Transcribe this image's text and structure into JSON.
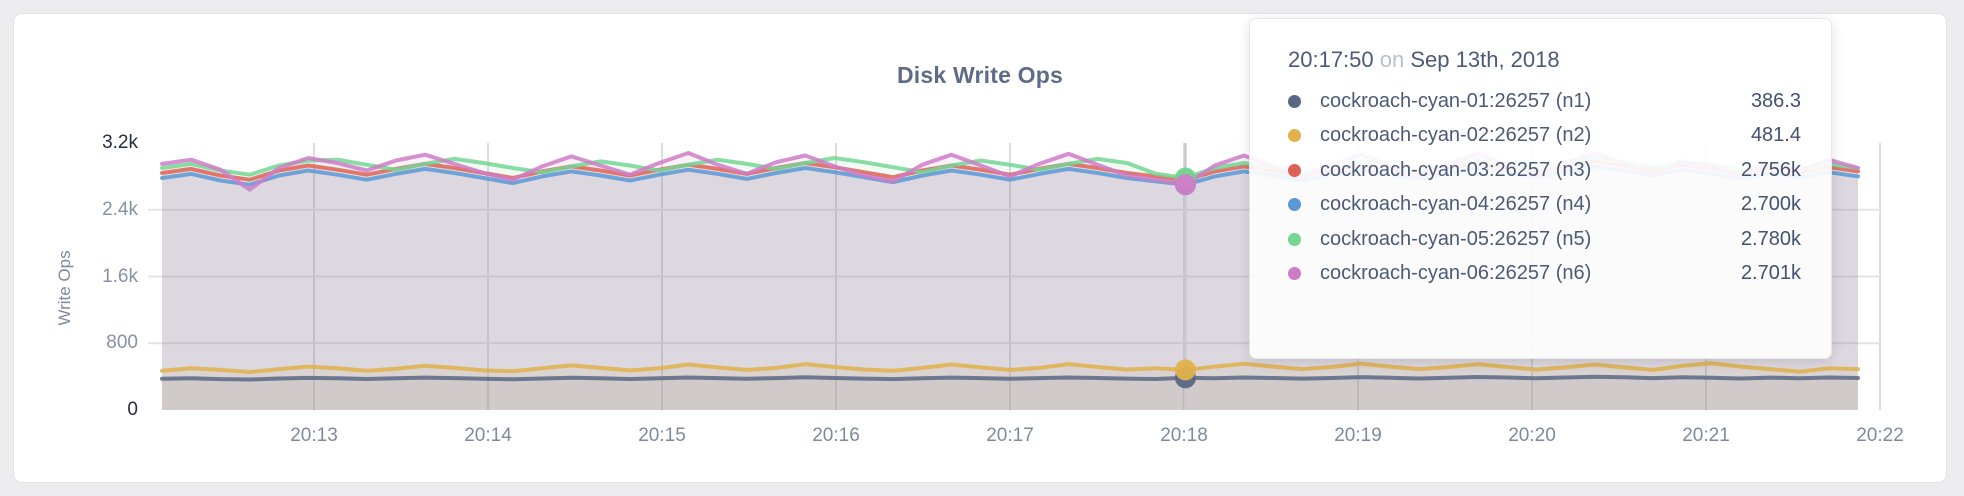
{
  "title": "Disk Write Ops",
  "tooltip": {
    "time": "20:17:50",
    "connector": "on",
    "date": "Sep 13th, 2018",
    "rows": [
      {
        "label": "cockroach-cyan-01:26257 (n1)",
        "value": "386.3",
        "color": "#5a6784"
      },
      {
        "label": "cockroach-cyan-02:26257 (n2)",
        "value": "481.4",
        "color": "#e0b24b"
      },
      {
        "label": "cockroach-cyan-03:26257 (n3)",
        "value": "2.756k",
        "color": "#de6156"
      },
      {
        "label": "cockroach-cyan-04:26257 (n4)",
        "value": "2.700k",
        "color": "#5a98d6"
      },
      {
        "label": "cockroach-cyan-05:26257 (n5)",
        "value": "2.780k",
        "color": "#73d694"
      },
      {
        "label": "cockroach-cyan-06:26257 (n6)",
        "value": "2.701k",
        "color": "#cf7cc7"
      }
    ]
  },
  "chart_data": {
    "type": "line",
    "title": "Disk Write Ops",
    "xlabel": "",
    "ylabel": "Write Ops",
    "ylim": [
      0,
      3200
    ],
    "grid": true,
    "area_fill": true,
    "legend_position": "tooltip-only",
    "y_ticks": [
      {
        "label": "0",
        "value": 0,
        "dark": true
      },
      {
        "label": "800",
        "value": 800,
        "dark": false
      },
      {
        "label": "1.6k",
        "value": 1600,
        "dark": false
      },
      {
        "label": "2.4k",
        "value": 2400,
        "dark": false
      },
      {
        "label": "3.2k",
        "value": 3200,
        "dark": true
      }
    ],
    "x_ticks": [
      "20:13",
      "20:14",
      "20:15",
      "20:16",
      "20:17",
      "20:18",
      "20:19",
      "20:20",
      "20:21",
      "20:22"
    ],
    "hover": {
      "index": 35,
      "time": "20:17:50",
      "date": "Sep 13th, 2018"
    },
    "series": [
      {
        "name": "cockroach-cyan-01:26257 (n1)",
        "color": "#5a6784",
        "hover_value": 386.3,
        "values": [
          375,
          380,
          370,
          365,
          378,
          385,
          380,
          372,
          380,
          388,
          382,
          374,
          368,
          378,
          386,
          380,
          372,
          380,
          390,
          382,
          374,
          382,
          392,
          384,
          376,
          370,
          380,
          388,
          382,
          374,
          382,
          390,
          384,
          376,
          372,
          386,
          380,
          390,
          384,
          376,
          384,
          394,
          386,
          378,
          386,
          396,
          390,
          380,
          390,
          398,
          392,
          382,
          392,
          386,
          378,
          388,
          380,
          390,
          384
        ]
      },
      {
        "name": "cockroach-cyan-02:26257 (n2)",
        "color": "#e0b24b",
        "hover_value": 481.4,
        "values": [
          470,
          500,
          480,
          455,
          490,
          520,
          500,
          470,
          495,
          530,
          505,
          475,
          465,
          500,
          535,
          505,
          475,
          500,
          545,
          510,
          480,
          505,
          550,
          515,
          485,
          470,
          505,
          545,
          510,
          480,
          505,
          550,
          515,
          485,
          500,
          481,
          520,
          555,
          520,
          490,
          515,
          555,
          520,
          490,
          515,
          550,
          515,
          485,
          510,
          545,
          510,
          480,
          530,
          560,
          520,
          490,
          460,
          500,
          490
        ]
      },
      {
        "name": "cockroach-cyan-03:26257 (n3)",
        "color": "#de6156",
        "hover_value": 2756,
        "values": [
          2840,
          2890,
          2810,
          2760,
          2870,
          2930,
          2880,
          2820,
          2890,
          2950,
          2900,
          2840,
          2780,
          2860,
          2920,
          2870,
          2810,
          2880,
          2940,
          2890,
          2830,
          2900,
          2960,
          2910,
          2850,
          2790,
          2870,
          2930,
          2880,
          2820,
          2890,
          2950,
          2900,
          2840,
          2800,
          2756,
          2860,
          2920,
          2870,
          2810,
          2880,
          2940,
          2890,
          2830,
          2900,
          2960,
          2910,
          2850,
          2920,
          2980,
          2930,
          2870,
          2940,
          2890,
          2830,
          2900,
          2850,
          2910,
          2860
        ]
      },
      {
        "name": "cockroach-cyan-04:26257 (n4)",
        "color": "#5a98d6",
        "hover_value": 2700,
        "values": [
          2780,
          2830,
          2750,
          2700,
          2810,
          2870,
          2820,
          2760,
          2830,
          2890,
          2840,
          2780,
          2720,
          2800,
          2860,
          2810,
          2750,
          2820,
          2880,
          2830,
          2770,
          2840,
          2900,
          2850,
          2790,
          2730,
          2810,
          2870,
          2820,
          2760,
          2830,
          2890,
          2840,
          2780,
          2740,
          2700,
          2800,
          2860,
          2810,
          2750,
          2820,
          2880,
          2830,
          2770,
          2840,
          2900,
          2850,
          2790,
          2860,
          2920,
          2870,
          2810,
          2880,
          2830,
          2770,
          2840,
          2790,
          2850,
          2800
        ]
      },
      {
        "name": "cockroach-cyan-05:26257 (n5)",
        "color": "#73d694",
        "hover_value": 2780,
        "values": [
          2900,
          2950,
          2870,
          2820,
          2930,
          2990,
          3000,
          2940,
          2880,
          2950,
          3010,
          2960,
          2900,
          2850,
          2920,
          2980,
          2930,
          2870,
          2940,
          3000,
          2950,
          2890,
          2960,
          3020,
          2970,
          2910,
          2850,
          2930,
          2990,
          2940,
          2880,
          2950,
          3010,
          2960,
          2830,
          2780,
          2900,
          2960,
          2910,
          2850,
          2920,
          2980,
          2930,
          2870,
          2940,
          3000,
          2950,
          2890,
          2960,
          3020,
          2970,
          2910,
          2980,
          2930,
          2870,
          2940,
          2890,
          2950,
          2900
        ]
      },
      {
        "name": "cockroach-cyan-06:26257 (n6)",
        "color": "#cf7cc7",
        "hover_value": 2701,
        "values": [
          2950,
          3000,
          2880,
          2640,
          2900,
          3020,
          2960,
          2870,
          2990,
          3060,
          2950,
          2840,
          2760,
          2920,
          3040,
          2930,
          2820,
          2960,
          3080,
          2940,
          2830,
          2970,
          3050,
          2920,
          2810,
          2740,
          2940,
          3060,
          2930,
          2800,
          2950,
          3070,
          2940,
          2810,
          2760,
          2701,
          2930,
          3050,
          2920,
          2790,
          2940,
          3060,
          2930,
          2800,
          2950,
          3070,
          2940,
          2810,
          2960,
          3080,
          2950,
          2820,
          2970,
          2920,
          2800,
          2950,
          2870,
          3000,
          2900
        ]
      }
    ]
  }
}
